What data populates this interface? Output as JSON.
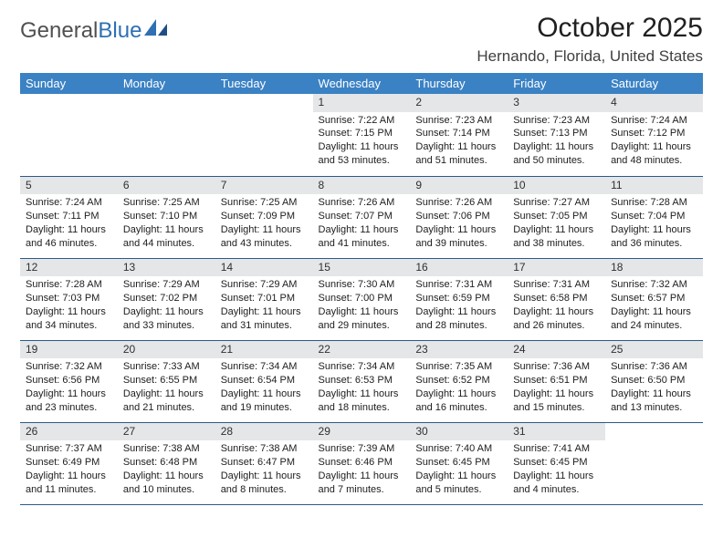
{
  "brand": {
    "part1": "General",
    "part2": "Blue"
  },
  "title": "October 2025",
  "location": "Hernando, Florida, United States",
  "labels": {
    "sunrise": "Sunrise:",
    "sunset": "Sunset:",
    "daylight": "Daylight:"
  },
  "colors": {
    "header_bg": "#3b82c4",
    "header_fg": "#ffffff",
    "daynum_bg": "#e4e6e8",
    "row_border": "#2c5a8a",
    "brand_gray": "#505050",
    "brand_blue": "#2f6fb3"
  },
  "fonts": {
    "title_pt": 30,
    "location_pt": 17,
    "dayhead_pt": 13,
    "daynum_pt": 12,
    "body_pt": 11
  },
  "days_of_week": [
    "Sunday",
    "Monday",
    "Tuesday",
    "Wednesday",
    "Thursday",
    "Friday",
    "Saturday"
  ],
  "grid": [
    [
      null,
      null,
      null,
      {
        "n": "1",
        "sunrise": "7:22 AM",
        "sunset": "7:15 PM",
        "daylight": "11 hours and 53 minutes."
      },
      {
        "n": "2",
        "sunrise": "7:23 AM",
        "sunset": "7:14 PM",
        "daylight": "11 hours and 51 minutes."
      },
      {
        "n": "3",
        "sunrise": "7:23 AM",
        "sunset": "7:13 PM",
        "daylight": "11 hours and 50 minutes."
      },
      {
        "n": "4",
        "sunrise": "7:24 AM",
        "sunset": "7:12 PM",
        "daylight": "11 hours and 48 minutes."
      }
    ],
    [
      {
        "n": "5",
        "sunrise": "7:24 AM",
        "sunset": "7:11 PM",
        "daylight": "11 hours and 46 minutes."
      },
      {
        "n": "6",
        "sunrise": "7:25 AM",
        "sunset": "7:10 PM",
        "daylight": "11 hours and 44 minutes."
      },
      {
        "n": "7",
        "sunrise": "7:25 AM",
        "sunset": "7:09 PM",
        "daylight": "11 hours and 43 minutes."
      },
      {
        "n": "8",
        "sunrise": "7:26 AM",
        "sunset": "7:07 PM",
        "daylight": "11 hours and 41 minutes."
      },
      {
        "n": "9",
        "sunrise": "7:26 AM",
        "sunset": "7:06 PM",
        "daylight": "11 hours and 39 minutes."
      },
      {
        "n": "10",
        "sunrise": "7:27 AM",
        "sunset": "7:05 PM",
        "daylight": "11 hours and 38 minutes."
      },
      {
        "n": "11",
        "sunrise": "7:28 AM",
        "sunset": "7:04 PM",
        "daylight": "11 hours and 36 minutes."
      }
    ],
    [
      {
        "n": "12",
        "sunrise": "7:28 AM",
        "sunset": "7:03 PM",
        "daylight": "11 hours and 34 minutes."
      },
      {
        "n": "13",
        "sunrise": "7:29 AM",
        "sunset": "7:02 PM",
        "daylight": "11 hours and 33 minutes."
      },
      {
        "n": "14",
        "sunrise": "7:29 AM",
        "sunset": "7:01 PM",
        "daylight": "11 hours and 31 minutes."
      },
      {
        "n": "15",
        "sunrise": "7:30 AM",
        "sunset": "7:00 PM",
        "daylight": "11 hours and 29 minutes."
      },
      {
        "n": "16",
        "sunrise": "7:31 AM",
        "sunset": "6:59 PM",
        "daylight": "11 hours and 28 minutes."
      },
      {
        "n": "17",
        "sunrise": "7:31 AM",
        "sunset": "6:58 PM",
        "daylight": "11 hours and 26 minutes."
      },
      {
        "n": "18",
        "sunrise": "7:32 AM",
        "sunset": "6:57 PM",
        "daylight": "11 hours and 24 minutes."
      }
    ],
    [
      {
        "n": "19",
        "sunrise": "7:32 AM",
        "sunset": "6:56 PM",
        "daylight": "11 hours and 23 minutes."
      },
      {
        "n": "20",
        "sunrise": "7:33 AM",
        "sunset": "6:55 PM",
        "daylight": "11 hours and 21 minutes."
      },
      {
        "n": "21",
        "sunrise": "7:34 AM",
        "sunset": "6:54 PM",
        "daylight": "11 hours and 19 minutes."
      },
      {
        "n": "22",
        "sunrise": "7:34 AM",
        "sunset": "6:53 PM",
        "daylight": "11 hours and 18 minutes."
      },
      {
        "n": "23",
        "sunrise": "7:35 AM",
        "sunset": "6:52 PM",
        "daylight": "11 hours and 16 minutes."
      },
      {
        "n": "24",
        "sunrise": "7:36 AM",
        "sunset": "6:51 PM",
        "daylight": "11 hours and 15 minutes."
      },
      {
        "n": "25",
        "sunrise": "7:36 AM",
        "sunset": "6:50 PM",
        "daylight": "11 hours and 13 minutes."
      }
    ],
    [
      {
        "n": "26",
        "sunrise": "7:37 AM",
        "sunset": "6:49 PM",
        "daylight": "11 hours and 11 minutes."
      },
      {
        "n": "27",
        "sunrise": "7:38 AM",
        "sunset": "6:48 PM",
        "daylight": "11 hours and 10 minutes."
      },
      {
        "n": "28",
        "sunrise": "7:38 AM",
        "sunset": "6:47 PM",
        "daylight": "11 hours and 8 minutes."
      },
      {
        "n": "29",
        "sunrise": "7:39 AM",
        "sunset": "6:46 PM",
        "daylight": "11 hours and 7 minutes."
      },
      {
        "n": "30",
        "sunrise": "7:40 AM",
        "sunset": "6:45 PM",
        "daylight": "11 hours and 5 minutes."
      },
      {
        "n": "31",
        "sunrise": "7:41 AM",
        "sunset": "6:45 PM",
        "daylight": "11 hours and 4 minutes."
      },
      null
    ]
  ]
}
